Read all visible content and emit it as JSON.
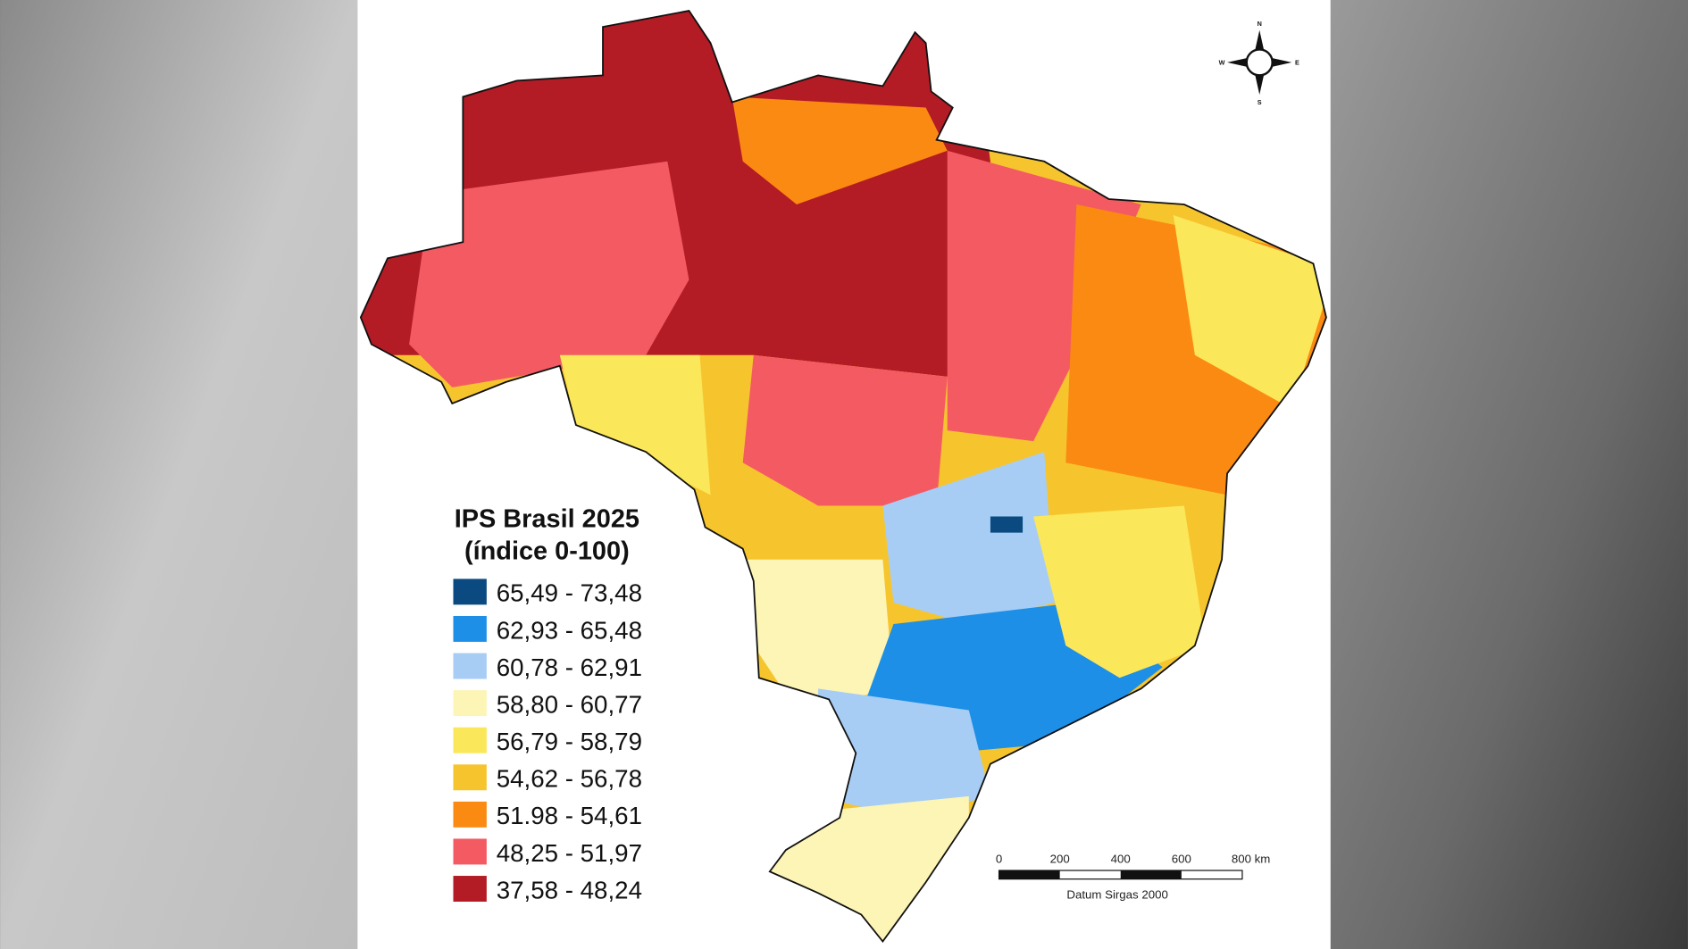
{
  "legend": {
    "title": "IPS Brasil 2025",
    "subtitle": "(índice 0-100)",
    "items": [
      {
        "label": "65,49 - 73,48",
        "color": "#0b4a80"
      },
      {
        "label": "62,93 - 65,48",
        "color": "#1e8fe6"
      },
      {
        "label": "60,78 - 62,91",
        "color": "#a7cdf5"
      },
      {
        "label": "58,80 - 60,77",
        "color": "#fdf5b6"
      },
      {
        "label": "56,79 - 58,79",
        "color": "#fbe75a"
      },
      {
        "label": "54,62 - 56,78",
        "color": "#f6c52e"
      },
      {
        "label": "51.98 - 54,61",
        "color": "#fb8a12"
      },
      {
        "label": "48,25 - 51,97",
        "color": "#f45a62"
      },
      {
        "label": "37,58 - 48,24",
        "color": "#b31b25"
      }
    ]
  },
  "compass": {
    "n": "N",
    "s": "S",
    "e": "E",
    "w": "W"
  },
  "scale_bar": {
    "ticks": [
      "0",
      "200",
      "400",
      "600",
      "800 km"
    ],
    "datum": "Datum Sirgas 2000"
  }
}
